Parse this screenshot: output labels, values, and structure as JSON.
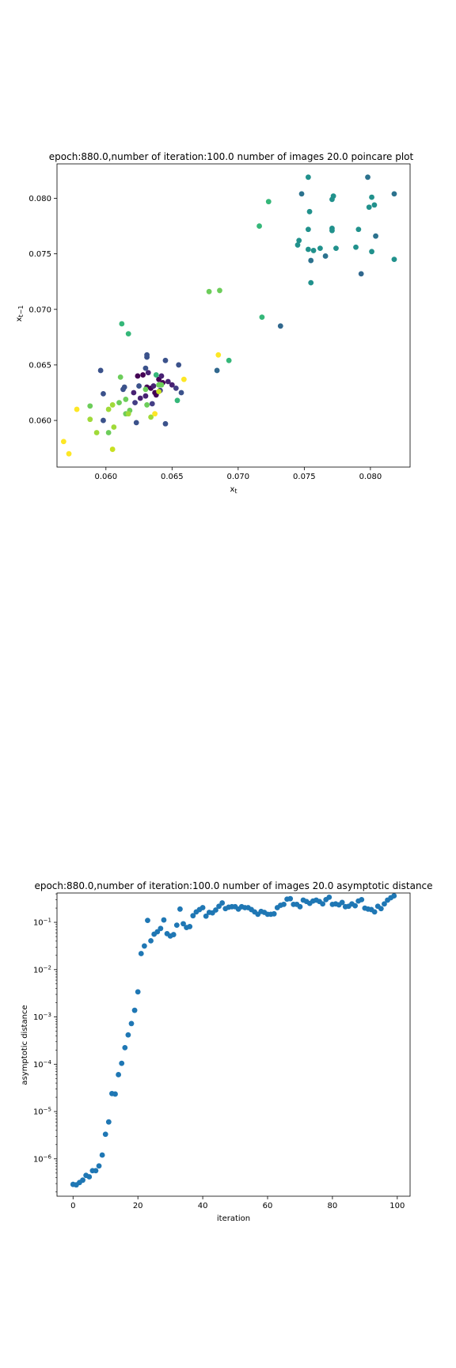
{
  "chart_data": [
    {
      "type": "scatter",
      "title": "epoch:880.0,number of iteration:100.0 number of images 20.0 poincare plot",
      "xlabel": "x_t",
      "ylabel": "x_{t−1}",
      "xlim": [
        0.0563,
        0.083
      ],
      "ylim": [
        0.0558,
        0.0831
      ],
      "xticks": [
        0.06,
        0.065,
        0.07,
        0.075,
        0.08
      ],
      "xtick_labels": [
        "0.060",
        "0.065",
        "0.070",
        "0.075",
        "0.080"
      ],
      "yticks": [
        0.06,
        0.065,
        0.07,
        0.075,
        0.08
      ],
      "ytick_labels": [
        "0.060",
        "0.065",
        "0.070",
        "0.075",
        "0.080"
      ],
      "grid": false,
      "colormap": "viridis (color encodes order of points)",
      "points": [
        [
          0.0624,
          0.064,
          "#440154"
        ],
        [
          0.0628,
          0.0641,
          "#440154"
        ],
        [
          0.0631,
          0.063,
          "#440154"
        ],
        [
          0.0634,
          0.0629,
          "#440154"
        ],
        [
          0.0637,
          0.0625,
          "#440154"
        ],
        [
          0.064,
          0.0637,
          "#440154"
        ],
        [
          0.0643,
          0.0634,
          "#440154"
        ],
        [
          0.0638,
          0.0623,
          "#440154"
        ],
        [
          0.063,
          0.0622,
          "#482173"
        ],
        [
          0.0626,
          0.062,
          "#482173"
        ],
        [
          0.0621,
          0.0625,
          "#482173"
        ],
        [
          0.0632,
          0.0643,
          "#482173"
        ],
        [
          0.0642,
          0.064,
          "#482173"
        ],
        [
          0.0647,
          0.0635,
          "#482173"
        ],
        [
          0.065,
          0.0632,
          "#482173"
        ],
        [
          0.0636,
          0.0631,
          "#482173"
        ],
        [
          0.0622,
          0.0616,
          "#433e85"
        ],
        [
          0.0635,
          0.0615,
          "#433e85"
        ],
        [
          0.0641,
          0.0627,
          "#433e85"
        ],
        [
          0.0653,
          0.0629,
          "#433e85"
        ],
        [
          0.0657,
          0.0625,
          "#3b528b"
        ],
        [
          0.0655,
          0.065,
          "#3b528b"
        ],
        [
          0.0645,
          0.0654,
          "#3b528b"
        ],
        [
          0.0631,
          0.0657,
          "#3b528b"
        ],
        [
          0.0631,
          0.0659,
          "#3b528b"
        ],
        [
          0.063,
          0.0647,
          "#3b528b"
        ],
        [
          0.0625,
          0.0631,
          "#3b528b"
        ],
        [
          0.0614,
          0.063,
          "#3b528b"
        ],
        [
          0.0613,
          0.0628,
          "#3b528b"
        ],
        [
          0.0598,
          0.0624,
          "#3b528b"
        ],
        [
          0.0596,
          0.0645,
          "#3b528b"
        ],
        [
          0.0645,
          0.0597,
          "#3b528b"
        ],
        [
          0.0623,
          0.0598,
          "#3b528b"
        ],
        [
          0.0598,
          0.06,
          "#3b528b"
        ],
        [
          0.0684,
          0.0645,
          "#31688e"
        ],
        [
          0.0732,
          0.0685,
          "#31688e"
        ],
        [
          0.0793,
          0.0732,
          "#31688e"
        ],
        [
          0.0804,
          0.0766,
          "#2c728e"
        ],
        [
          0.0766,
          0.0748,
          "#2c728e"
        ],
        [
          0.0755,
          0.0744,
          "#2c728e"
        ],
        [
          0.0748,
          0.0804,
          "#2c728e"
        ],
        [
          0.0818,
          0.0804,
          "#2c728e"
        ],
        [
          0.0798,
          0.0819,
          "#2c728e"
        ],
        [
          0.0789,
          0.0756,
          "#21918c"
        ],
        [
          0.0801,
          0.0752,
          "#21918c"
        ],
        [
          0.0818,
          0.0745,
          "#21918c"
        ],
        [
          0.0803,
          0.0794,
          "#21918c"
        ],
        [
          0.0799,
          0.0792,
          "#21918c"
        ],
        [
          0.0801,
          0.0801,
          "#21918c"
        ],
        [
          0.0772,
          0.0802,
          "#21918c"
        ],
        [
          0.0771,
          0.0799,
          "#21918c"
        ],
        [
          0.0754,
          0.0788,
          "#21918c"
        ],
        [
          0.0753,
          0.0819,
          "#21918c"
        ],
        [
          0.0753,
          0.0772,
          "#21918c"
        ],
        [
          0.0745,
          0.0758,
          "#21918c"
        ],
        [
          0.0746,
          0.0762,
          "#21918c"
        ],
        [
          0.0753,
          0.0754,
          "#21918c"
        ],
        [
          0.0757,
          0.0753,
          "#21918c"
        ],
        [
          0.0762,
          0.0755,
          "#21918c"
        ],
        [
          0.0771,
          0.0773,
          "#21918c"
        ],
        [
          0.0771,
          0.0771,
          "#21918c"
        ],
        [
          0.0774,
          0.0755,
          "#21918c"
        ],
        [
          0.0791,
          0.0772,
          "#21918c"
        ],
        [
          0.0755,
          0.0724,
          "#21918c"
        ],
        [
          0.0723,
          0.0797,
          "#35b779"
        ],
        [
          0.0716,
          0.0775,
          "#35b779"
        ],
        [
          0.0718,
          0.0693,
          "#35b779"
        ],
        [
          0.0693,
          0.0654,
          "#35b779"
        ],
        [
          0.0654,
          0.0618,
          "#35b779"
        ],
        [
          0.0617,
          0.0678,
          "#35b779"
        ],
        [
          0.0612,
          0.0687,
          "#35b779"
        ],
        [
          0.0638,
          0.0641,
          "#35b779"
        ],
        [
          0.0678,
          0.0716,
          "#6ccd5a"
        ],
        [
          0.0686,
          0.0717,
          "#6ccd5a"
        ],
        [
          0.0611,
          0.0639,
          "#6ccd5a"
        ],
        [
          0.063,
          0.0628,
          "#6ccd5a"
        ],
        [
          0.064,
          0.0632,
          "#6ccd5a"
        ],
        [
          0.0642,
          0.0632,
          "#6ccd5a"
        ],
        [
          0.0631,
          0.0614,
          "#6ccd5a"
        ],
        [
          0.061,
          0.0616,
          "#6ccd5a"
        ],
        [
          0.0615,
          0.0619,
          "#6ccd5a"
        ],
        [
          0.0618,
          0.0609,
          "#6ccd5a"
        ],
        [
          0.0615,
          0.0606,
          "#6ccd5a"
        ],
        [
          0.0602,
          0.0589,
          "#6ccd5a"
        ],
        [
          0.0588,
          0.0613,
          "#6ccd5a"
        ],
        [
          0.0634,
          0.0603,
          "#a0da39"
        ],
        [
          0.0617,
          0.0606,
          "#a0da39"
        ],
        [
          0.0605,
          0.0614,
          "#a0da39"
        ],
        [
          0.0602,
          0.061,
          "#a0da39"
        ],
        [
          0.0588,
          0.0601,
          "#a0da39"
        ],
        [
          0.0606,
          0.0594,
          "#a0da39"
        ],
        [
          0.0593,
          0.0589,
          "#a0da39"
        ],
        [
          0.0605,
          0.0574,
          "#c8e020"
        ],
        [
          0.064,
          0.0626,
          "#c8e020"
        ],
        [
          0.0578,
          0.061,
          "#fde725"
        ],
        [
          0.0637,
          0.0606,
          "#fde725"
        ],
        [
          0.0685,
          0.0659,
          "#fde725"
        ],
        [
          0.0659,
          0.0637,
          "#fde725"
        ],
        [
          0.0568,
          0.0581,
          "#fde725"
        ],
        [
          0.0572,
          0.057,
          "#fde725"
        ]
      ]
    },
    {
      "type": "scatter",
      "title": "epoch:880.0,number of iteration:100.0  number of images 20.0 asymptotic distance",
      "xlabel": "iteration",
      "ylabel": "asymptotic distance",
      "xlim": [
        -4.95,
        103.95
      ],
      "xticks": [
        0,
        20,
        40,
        60,
        80,
        100
      ],
      "xtick_labels": [
        "0",
        "20",
        "40",
        "60",
        "80",
        "100"
      ],
      "yscale": "log",
      "ylim_log10": [
        -6.79,
        -0.38
      ],
      "yticks_log10": [
        -6,
        -5,
        -4,
        -3,
        -2,
        -1
      ],
      "ytick_labels": [
        "10^-6",
        "10^-5",
        "10^-4",
        "10^-3",
        "10^-2",
        "10^-1"
      ],
      "grid": false,
      "color": "#1f77b4",
      "x": [
        0,
        1,
        2,
        3,
        4,
        5,
        6,
        7,
        8,
        9,
        10,
        11,
        12,
        13,
        14,
        15,
        16,
        17,
        18,
        19,
        20,
        21,
        22,
        23,
        24,
        25,
        26,
        27,
        28,
        29,
        30,
        31,
        32,
        33,
        34,
        35,
        36,
        37,
        38,
        39,
        40,
        41,
        42,
        43,
        44,
        45,
        46,
        47,
        48,
        49,
        50,
        51,
        52,
        53,
        54,
        55,
        56,
        57,
        58,
        59,
        60,
        61,
        62,
        63,
        64,
        65,
        66,
        67,
        68,
        69,
        70,
        71,
        72,
        73,
        74,
        75,
        76,
        77,
        78,
        79,
        80,
        81,
        82,
        83,
        84,
        85,
        86,
        87,
        88,
        89,
        90,
        91,
        92,
        93,
        94,
        95,
        96,
        97,
        98,
        99
      ],
      "log10_y": [
        -6.54,
        -6.55,
        -6.5,
        -6.45,
        -6.35,
        -6.38,
        -6.25,
        -6.25,
        -6.15,
        -5.92,
        -5.48,
        -5.22,
        -4.62,
        -4.63,
        -4.22,
        -3.98,
        -3.65,
        -3.38,
        -3.14,
        -2.86,
        -2.47,
        -1.66,
        -1.5,
        -0.96,
        -1.39,
        -1.25,
        -1.2,
        -1.13,
        -0.95,
        -1.24,
        -1.29,
        -1.26,
        -1.06,
        -0.72,
        -1.03,
        -1.11,
        -1.09,
        -0.86,
        -0.78,
        -0.73,
        -0.69,
        -0.87,
        -0.79,
        -0.8,
        -0.74,
        -0.66,
        -0.59,
        -0.71,
        -0.68,
        -0.67,
        -0.67,
        -0.72,
        -0.67,
        -0.69,
        -0.69,
        -0.73,
        -0.78,
        -0.83,
        -0.77,
        -0.79,
        -0.83,
        -0.83,
        -0.82,
        -0.69,
        -0.64,
        -0.62,
        -0.51,
        -0.5,
        -0.62,
        -0.62,
        -0.67,
        -0.53,
        -0.56,
        -0.6,
        -0.55,
        -0.53,
        -0.56,
        -0.61,
        -0.52,
        -0.47,
        -0.62,
        -0.61,
        -0.63,
        -0.58,
        -0.67,
        -0.66,
        -0.61,
        -0.65,
        -0.55,
        -0.52,
        -0.7,
        -0.72,
        -0.73,
        -0.78,
        -0.66,
        -0.71,
        -0.61,
        -0.53,
        -0.48,
        -0.44
      ]
    }
  ]
}
